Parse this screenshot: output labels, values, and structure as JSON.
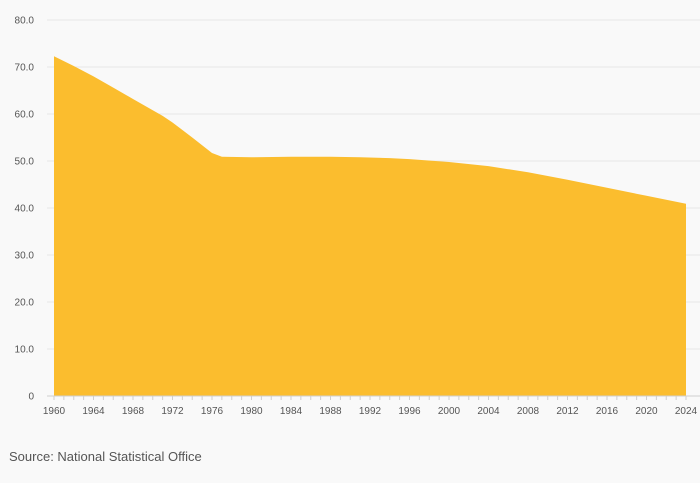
{
  "source_text": "Source: National Statistical Office",
  "colors": {
    "area_fill": "#fbbd2e",
    "gridline": "#e6e6e6",
    "axis_line": "#cfcfcf",
    "text": "#555555",
    "background": "#f9f9f9"
  },
  "chart_data": {
    "type": "area",
    "title": "",
    "xlabel": "",
    "ylabel": "",
    "grid": true,
    "legend": "none",
    "xlim": [
      1960,
      2024
    ],
    "ylim": [
      0,
      80
    ],
    "x_ticks": [
      1960,
      1964,
      1968,
      1972,
      1976,
      1980,
      1984,
      1988,
      1992,
      1996,
      2000,
      2004,
      2008,
      2012,
      2016,
      2020,
      2024
    ],
    "y_ticks": [
      0,
      10,
      20,
      30,
      40,
      50,
      60,
      70,
      80
    ],
    "y_tick_labels": [
      "0",
      "10.0",
      "20.0",
      "30.0",
      "40.0",
      "50.0",
      "60.0",
      "70.0",
      "80.0"
    ],
    "series": [
      {
        "x": [
          1960,
          1962,
          1964,
          1966,
          1968,
          1970,
          1971,
          1972,
          1974,
          1976,
          1977,
          1980,
          1984,
          1988,
          1991,
          1994,
          1996,
          2000,
          2004,
          2008,
          2012,
          2016,
          2020,
          2024
        ],
        "values": [
          72.3,
          70.2,
          68.0,
          65.6,
          63.2,
          60.8,
          59.6,
          58.2,
          55.0,
          51.7,
          50.9,
          50.8,
          50.9,
          50.9,
          50.8,
          50.6,
          50.4,
          49.8,
          48.9,
          47.6,
          46.0,
          44.3,
          42.6,
          40.9
        ]
      }
    ]
  }
}
